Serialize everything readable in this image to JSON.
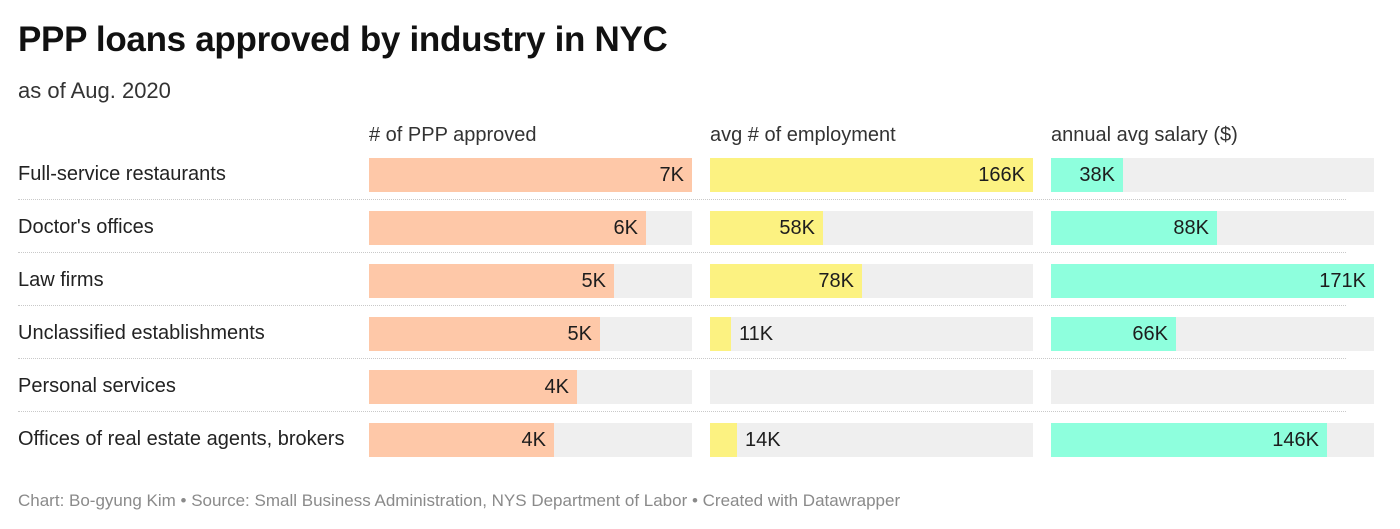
{
  "chart_data": {
    "type": "bar",
    "title": "PPP loans approved by industry in NYC",
    "subtitle": "as of Aug. 2020",
    "categories": [
      "Full-service restaurants",
      "Doctor's offices",
      "Law firms",
      "Unclassified establishments",
      "Personal services",
      "Offices of real estate agents, brokers"
    ],
    "series": [
      {
        "name": "# of PPP approved",
        "color": "#fec8a8",
        "max": 7.0,
        "values": [
          7.0,
          6.0,
          5.3,
          5.0,
          4.5,
          4.0
        ],
        "labels": [
          "7K",
          "6K",
          "5K",
          "5K",
          "4K",
          "4K"
        ]
      },
      {
        "name": "avg # of employment",
        "color": "#fcf281",
        "max": 166,
        "values": [
          166,
          58,
          78,
          11,
          null,
          14
        ],
        "labels": [
          "166K",
          "58K",
          "78K",
          "11K",
          "",
          "14K"
        ]
      },
      {
        "name": "annual avg salary ($)",
        "color": "#8effdd",
        "max": 171,
        "values": [
          38,
          88,
          171,
          66,
          null,
          146
        ],
        "labels": [
          "38K",
          "88K",
          "171K",
          "66K",
          "",
          "146K"
        ]
      }
    ],
    "footer": "Chart: Bo-gyung Kim • Source: Small Business Administration, NYS Department of Labor • Created with Datawrapper"
  }
}
